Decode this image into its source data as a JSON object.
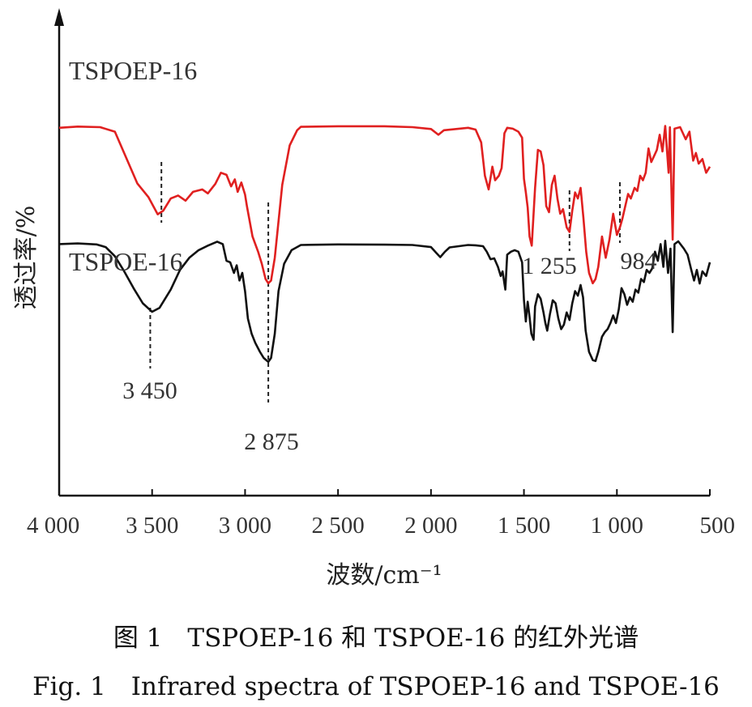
{
  "chart_data": {
    "type": "line",
    "title": "",
    "xlabel": "波数/cm⁻¹",
    "ylabel": "透过率/%",
    "xlim": [
      4000,
      500
    ],
    "x_reversed": true,
    "xticks": [
      4000,
      3500,
      3000,
      2500,
      2000,
      1500,
      1000,
      500
    ],
    "xtick_labels": [
      "4 000",
      "3 500",
      "3 000",
      "2 500",
      "2 000",
      "1 500",
      "1 000",
      "500"
    ],
    "ylim": [
      0,
      100
    ],
    "yticks_shown": false,
    "grid": false,
    "series": [
      {
        "name": "TSPOEP-16",
        "color": "#e02020",
        "points": [
          [
            4000,
            91.8
          ],
          [
            3900,
            92.2
          ],
          [
            3780,
            92.0
          ],
          [
            3700,
            90.5
          ],
          [
            3640,
            82
          ],
          [
            3580,
            73.5
          ],
          [
            3520,
            69
          ],
          [
            3470,
            63.3
          ],
          [
            3440,
            64.5
          ],
          [
            3400,
            68.5
          ],
          [
            3360,
            69.5
          ],
          [
            3320,
            67.8
          ],
          [
            3280,
            70.7
          ],
          [
            3230,
            71.5
          ],
          [
            3200,
            70.2
          ],
          [
            3160,
            73.3
          ],
          [
            3130,
            77.0
          ],
          [
            3100,
            76.3
          ],
          [
            3075,
            72.5
          ],
          [
            3055,
            74.8
          ],
          [
            3040,
            70.7
          ],
          [
            3020,
            73.8
          ],
          [
            3000,
            69.8
          ],
          [
            2990,
            66.0
          ],
          [
            2960,
            56.0
          ],
          [
            2930,
            51.0
          ],
          [
            2910,
            47.0
          ],
          [
            2890,
            42.0
          ],
          [
            2875,
            40.6
          ],
          [
            2860,
            41.5
          ],
          [
            2840,
            49.0
          ],
          [
            2800,
            73.0
          ],
          [
            2760,
            86.0
          ],
          [
            2720,
            91.0
          ],
          [
            2700,
            92.1
          ],
          [
            2500,
            92.3
          ],
          [
            2250,
            92.3
          ],
          [
            2100,
            92.0
          ],
          [
            2000,
            91.4
          ],
          [
            1960,
            89.5
          ],
          [
            1930,
            91.0
          ],
          [
            1800,
            91.8
          ],
          [
            1760,
            91.2
          ],
          [
            1730,
            87.0
          ],
          [
            1710,
            76.0
          ],
          [
            1690,
            71.5
          ],
          [
            1670,
            79.0
          ],
          [
            1655,
            74.5
          ],
          [
            1635,
            76.0
          ],
          [
            1620,
            78.5
          ],
          [
            1605,
            90.0
          ],
          [
            1590,
            91.8
          ],
          [
            1560,
            91.5
          ],
          [
            1530,
            90.5
          ],
          [
            1510,
            88.5
          ],
          [
            1500,
            75.0
          ],
          [
            1490,
            70.5
          ],
          [
            1480,
            65.5
          ],
          [
            1470,
            56.0
          ],
          [
            1458,
            53.0
          ],
          [
            1440,
            72.0
          ],
          [
            1425,
            84.5
          ],
          [
            1410,
            84.0
          ],
          [
            1395,
            79.5
          ],
          [
            1380,
            66.0
          ],
          [
            1365,
            64.0
          ],
          [
            1350,
            73.0
          ],
          [
            1335,
            76.0
          ],
          [
            1320,
            68.5
          ],
          [
            1305,
            63.5
          ],
          [
            1290,
            65.0
          ],
          [
            1270,
            59.0
          ],
          [
            1255,
            57.5
          ],
          [
            1240,
            64.5
          ],
          [
            1225,
            70.5
          ],
          [
            1210,
            68.5
          ],
          [
            1195,
            72.0
          ],
          [
            1180,
            62.0
          ],
          [
            1165,
            51.0
          ],
          [
            1150,
            44.0
          ],
          [
            1130,
            40.6
          ],
          [
            1115,
            42.0
          ],
          [
            1100,
            46.0
          ],
          [
            1080,
            56.0
          ],
          [
            1060,
            49.0
          ],
          [
            1040,
            55.0
          ],
          [
            1020,
            63.5
          ],
          [
            1000,
            56.5
          ],
          [
            984,
            59.0
          ],
          [
            970,
            62.0
          ],
          [
            955,
            66.0
          ],
          [
            940,
            70.0
          ],
          [
            925,
            68.5
          ],
          [
            905,
            72.0
          ],
          [
            890,
            71.0
          ],
          [
            875,
            76.0
          ],
          [
            860,
            74.5
          ],
          [
            845,
            77.0
          ],
          [
            830,
            85.0
          ],
          [
            815,
            80.5
          ],
          [
            800,
            82.5
          ],
          [
            785,
            84.5
          ],
          [
            770,
            89.5
          ],
          [
            755,
            84.0
          ],
          [
            740,
            92.4
          ],
          [
            722,
            77.0
          ],
          [
            715,
            92.0
          ],
          [
            700,
            55.0
          ],
          [
            690,
            91.5
          ],
          [
            660,
            92.0
          ],
          [
            630,
            88.0
          ],
          [
            610,
            90.5
          ],
          [
            590,
            81.0
          ],
          [
            575,
            83.5
          ],
          [
            560,
            80.0
          ],
          [
            540,
            81.5
          ],
          [
            520,
            77.0
          ],
          [
            500,
            79.0
          ]
        ]
      },
      {
        "name": "TSPOE-16",
        "color": "#111111",
        "points": [
          [
            4000,
            53.5
          ],
          [
            3900,
            53.7
          ],
          [
            3800,
            53.4
          ],
          [
            3750,
            52.5
          ],
          [
            3700,
            49.5
          ],
          [
            3650,
            44.5
          ],
          [
            3600,
            39.0
          ],
          [
            3550,
            34.0
          ],
          [
            3500,
            31.2
          ],
          [
            3460,
            32.5
          ],
          [
            3400,
            38.5
          ],
          [
            3350,
            45.0
          ],
          [
            3300,
            49.0
          ],
          [
            3250,
            51.5
          ],
          [
            3200,
            53.0
          ],
          [
            3150,
            54.3
          ],
          [
            3120,
            53.5
          ],
          [
            3100,
            48.0
          ],
          [
            3080,
            47.5
          ],
          [
            3060,
            44.0
          ],
          [
            3045,
            46.5
          ],
          [
            3030,
            41.5
          ],
          [
            3015,
            44.0
          ],
          [
            3000,
            38.0
          ],
          [
            2985,
            29.0
          ],
          [
            2965,
            24.0
          ],
          [
            2945,
            21.0
          ],
          [
            2920,
            18.0
          ],
          [
            2900,
            16.0
          ],
          [
            2875,
            14.7
          ],
          [
            2860,
            16.0
          ],
          [
            2840,
            24.0
          ],
          [
            2820,
            38.0
          ],
          [
            2790,
            47.0
          ],
          [
            2750,
            51.5
          ],
          [
            2700,
            53.2
          ],
          [
            2500,
            53.4
          ],
          [
            2250,
            53.3
          ],
          [
            2100,
            53.2
          ],
          [
            2000,
            52.5
          ],
          [
            1970,
            50.5
          ],
          [
            1950,
            49.2
          ],
          [
            1925,
            51.0
          ],
          [
            1900,
            52.4
          ],
          [
            1800,
            53.2
          ],
          [
            1760,
            53.1
          ],
          [
            1720,
            52.8
          ],
          [
            1700,
            51.0
          ],
          [
            1680,
            48.5
          ],
          [
            1660,
            48.8
          ],
          [
            1640,
            46.0
          ],
          [
            1625,
            43.0
          ],
          [
            1615,
            44.5
          ],
          [
            1600,
            38.5
          ],
          [
            1590,
            50.0
          ],
          [
            1570,
            51.0
          ],
          [
            1550,
            51.5
          ],
          [
            1530,
            51.0
          ],
          [
            1510,
            47.5
          ],
          [
            1500,
            35.0
          ],
          [
            1490,
            28.0
          ],
          [
            1480,
            34.5
          ],
          [
            1470,
            29.5
          ],
          [
            1460,
            24.0
          ],
          [
            1448,
            22.0
          ],
          [
            1440,
            33.0
          ],
          [
            1425,
            37.0
          ],
          [
            1410,
            35.5
          ],
          [
            1395,
            31.0
          ],
          [
            1385,
            27.5
          ],
          [
            1375,
            25.0
          ],
          [
            1360,
            30.5
          ],
          [
            1345,
            35.0
          ],
          [
            1330,
            34.0
          ],
          [
            1315,
            29.0
          ],
          [
            1300,
            25.5
          ],
          [
            1285,
            27.0
          ],
          [
            1270,
            31.0
          ],
          [
            1255,
            28.5
          ],
          [
            1240,
            34.0
          ],
          [
            1225,
            38.0
          ],
          [
            1210,
            36.5
          ],
          [
            1195,
            40.0
          ],
          [
            1182,
            36.0
          ],
          [
            1168,
            25.0
          ],
          [
            1150,
            18.0
          ],
          [
            1130,
            15.3
          ],
          [
            1115,
            15.0
          ],
          [
            1100,
            18.0
          ],
          [
            1080,
            23.0
          ],
          [
            1065,
            24.5
          ],
          [
            1050,
            25.5
          ],
          [
            1035,
            27.5
          ],
          [
            1020,
            30.0
          ],
          [
            1005,
            27.5
          ],
          [
            990,
            32.0
          ],
          [
            975,
            39.0
          ],
          [
            960,
            37.0
          ],
          [
            945,
            33.5
          ],
          [
            930,
            36.0
          ],
          [
            915,
            34.5
          ],
          [
            900,
            38.5
          ],
          [
            885,
            37.5
          ],
          [
            870,
            42.0
          ],
          [
            855,
            41.0
          ],
          [
            840,
            45.0
          ],
          [
            825,
            44.0
          ],
          [
            810,
            45.5
          ],
          [
            795,
            51.0
          ],
          [
            780,
            48.0
          ],
          [
            765,
            53.5
          ],
          [
            750,
            46.0
          ],
          [
            740,
            54.6
          ],
          [
            725,
            44.0
          ],
          [
            712,
            52.0
          ],
          [
            700,
            24.5
          ],
          [
            690,
            53.5
          ],
          [
            670,
            54.4
          ],
          [
            640,
            52.0
          ],
          [
            620,
            50.0
          ],
          [
            600,
            45.0
          ],
          [
            585,
            41.5
          ],
          [
            570,
            45.0
          ],
          [
            555,
            40.5
          ],
          [
            540,
            44.5
          ],
          [
            520,
            43.0
          ],
          [
            500,
            47.5
          ]
        ]
      }
    ],
    "annotations": [
      {
        "text": "3 450",
        "x": 3450,
        "series": "TSPOE-16"
      },
      {
        "text": "2 875",
        "x": 2875,
        "series": "both"
      },
      {
        "text": "1 255",
        "x": 1255,
        "series": "TSPOEP-16"
      },
      {
        "text": "984",
        "x": 984,
        "series": "TSPOEP-16"
      }
    ]
  },
  "captions": {
    "cn": "图 1　TSPOEP-16 和 TSPOE-16 的红外光谱",
    "en": "Fig. 1　Infrared spectra of TSPOEP-16 and TSPOE-16"
  }
}
